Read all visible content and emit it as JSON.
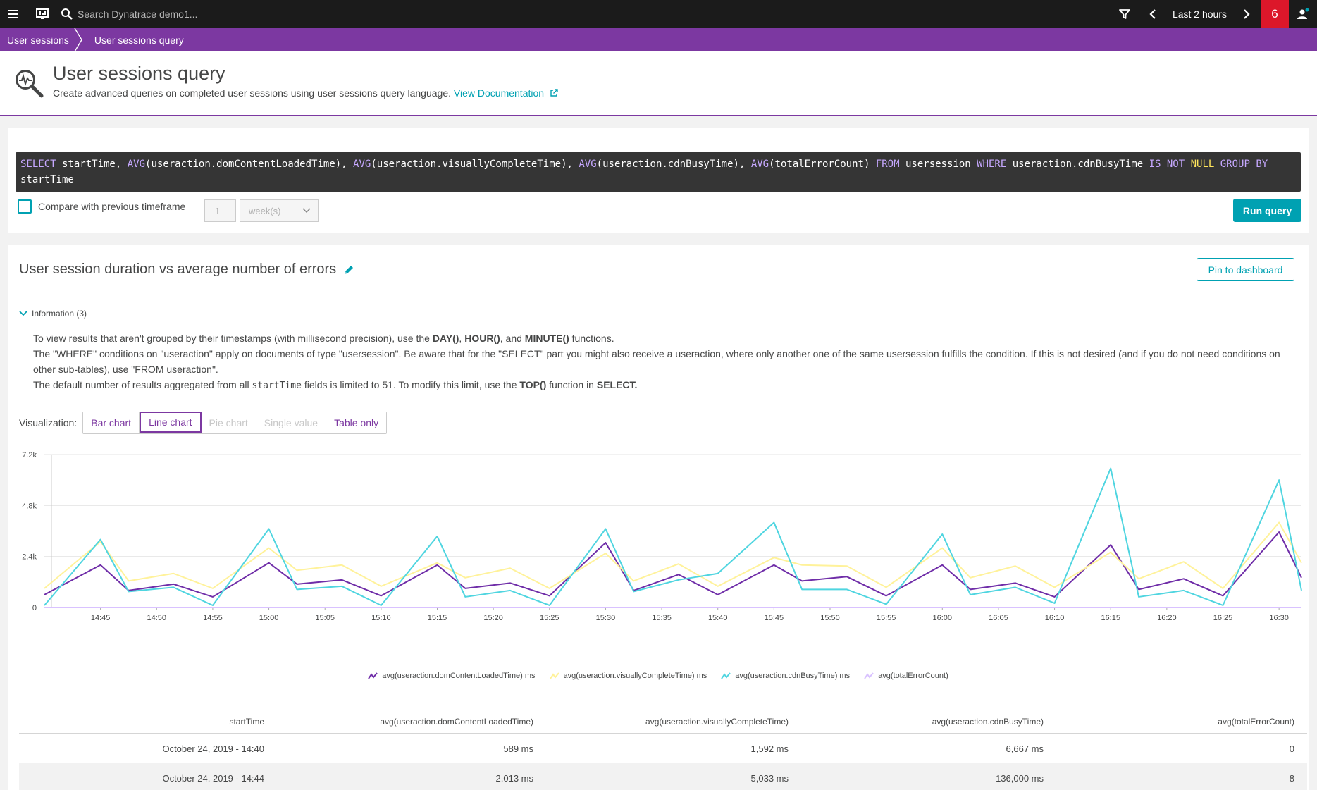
{
  "topbar": {
    "search_placeholder": "Search Dynatrace demo1...",
    "timeframe": "Last 2 hours",
    "problem_count": "6"
  },
  "breadcrumb": [
    "User sessions",
    "User sessions query"
  ],
  "header": {
    "title": "User sessions query",
    "subtitle": "Create advanced queries on completed user sessions using user sessions query language.",
    "doc_link": "View Documentation"
  },
  "query": {
    "tokens": [
      {
        "t": "SELECT",
        "k": "kw"
      },
      {
        "t": " startTime, ",
        "k": ""
      },
      {
        "t": "AVG",
        "k": "kw"
      },
      {
        "t": "(useraction.domContentLoadedTime), ",
        "k": ""
      },
      {
        "t": "AVG",
        "k": "kw"
      },
      {
        "t": "(useraction.visuallyCompleteTime), ",
        "k": ""
      },
      {
        "t": "AVG",
        "k": "kw"
      },
      {
        "t": "(useraction.cdnBusyTime), ",
        "k": ""
      },
      {
        "t": "AVG",
        "k": "kw"
      },
      {
        "t": "(totalErrorCount) ",
        "k": ""
      },
      {
        "t": "FROM",
        "k": "kw"
      },
      {
        "t": " usersession ",
        "k": ""
      },
      {
        "t": "WHERE",
        "k": "kw"
      },
      {
        "t": " useraction.cdnBusyTime ",
        "k": ""
      },
      {
        "t": "IS NOT",
        "k": "kw"
      },
      {
        "t": " ",
        "k": ""
      },
      {
        "t": "NULL",
        "k": "kw3"
      },
      {
        "t": " ",
        "k": ""
      },
      {
        "t": "GROUP BY",
        "k": "kw"
      },
      {
        "t": " startTime",
        "k": ""
      }
    ],
    "compare_label": "Compare with previous timeframe",
    "compare_value": "1",
    "compare_unit": "week(s)",
    "run_label": "Run query"
  },
  "results": {
    "title": "User session duration vs average number of errors",
    "pin_label": "Pin to dashboard",
    "info_label": "Information (3)",
    "info_lines": [
      [
        {
          "t": "To view results that aren't grouped by their timestamps (with millisecond precision), use the "
        },
        {
          "t": "DAY()",
          "b": true
        },
        {
          "t": ", "
        },
        {
          "t": "HOUR()",
          "b": true
        },
        {
          "t": ", and "
        },
        {
          "t": "MINUTE()",
          "b": true
        },
        {
          "t": " functions."
        }
      ],
      [
        {
          "t": "The \"WHERE\" conditions on \"useraction\" apply on documents of type \"usersession\". Be aware that for the \"SELECT\" part you might also receive a useraction, where only another one of the same usersession fulfills the condition. If this is not desired (and if you do not need conditions on other sub-tables), use \"FROM useraction\"."
        }
      ],
      [
        {
          "t": "The default number of results aggregated from all "
        },
        {
          "t": "startTime",
          "m": true
        },
        {
          "t": " fields is limited to 51. To modify this limit, use the "
        },
        {
          "t": "TOP()",
          "b": true
        },
        {
          "t": " function in "
        },
        {
          "t": "SELECT.",
          "b": true
        }
      ]
    ],
    "viz_label": "Visualization:",
    "viz_options": [
      {
        "label": "Bar chart",
        "state": "normal"
      },
      {
        "label": "Line chart",
        "state": "active"
      },
      {
        "label": "Pie chart",
        "state": "disabled"
      },
      {
        "label": "Single value",
        "state": "disabled"
      },
      {
        "label": "Table only",
        "state": "normal"
      }
    ],
    "table": {
      "headers": [
        "startTime",
        "avg(useraction.domContentLoadedTime)",
        "avg(useraction.visuallyCompleteTime)",
        "avg(useraction.cdnBusyTime)",
        "avg(totalErrorCount)"
      ],
      "rows": [
        [
          "October 24, 2019 - 14:40",
          "589 ms",
          "1,592 ms",
          "6,667 ms",
          "0"
        ],
        [
          "October 24, 2019 - 14:44",
          "2,013 ms",
          "5,033 ms",
          "136,000 ms",
          "8"
        ]
      ]
    }
  },
  "chart_data": {
    "type": "line",
    "ylim": [
      0,
      7200
    ],
    "yticks": [
      0,
      2400,
      4800,
      7200
    ],
    "ytick_labels": [
      "0",
      "2.4k",
      "4.8k",
      "7.2k"
    ],
    "xlim": [
      0,
      112
    ],
    "xticks": [
      5,
      10,
      15,
      20,
      25,
      30,
      35,
      40,
      45,
      50,
      55,
      60,
      65,
      70,
      75,
      80,
      85,
      90,
      95,
      100,
      105,
      110
    ],
    "xtick_labels": [
      "14:45",
      "14:50",
      "14:55",
      "15:00",
      "15:05",
      "15:10",
      "15:15",
      "15:20",
      "15:25",
      "15:30",
      "15:35",
      "15:40",
      "15:45",
      "15:50",
      "15:55",
      "16:00",
      "16:05",
      "16:10",
      "16:15",
      "16:20",
      "16:25",
      "16:30"
    ],
    "x": [
      0,
      5,
      7.5,
      11.5,
      15,
      20,
      22.5,
      26.5,
      30,
      35,
      37.5,
      41.5,
      45,
      50,
      52.5,
      56.5,
      60,
      65,
      67.5,
      71.5,
      75,
      80,
      82.5,
      86.5,
      90,
      95,
      97.5,
      101.5,
      105,
      110,
      112
    ],
    "series": [
      {
        "name": "avg(useraction.domContentLoadedTime) ms",
        "color": "#6f2da8",
        "values": [
          600,
          2000,
          800,
          1100,
          500,
          2100,
          1100,
          1300,
          550,
          2000,
          900,
          1150,
          550,
          3050,
          800,
          1550,
          600,
          2000,
          1250,
          1450,
          550,
          2000,
          850,
          1150,
          500,
          2950,
          850,
          1350,
          550,
          3550,
          1400
        ]
      },
      {
        "name": "avg(useraction.visuallyCompleteTime) ms",
        "color": "#fff29a",
        "values": [
          900,
          3100,
          1250,
          1600,
          900,
          2800,
          1750,
          2000,
          1000,
          2100,
          1400,
          1850,
          900,
          2550,
          1250,
          2050,
          1000,
          2350,
          2000,
          1950,
          950,
          2800,
          1400,
          1950,
          950,
          2600,
          1350,
          2150,
          900,
          4000,
          2100
        ]
      },
      {
        "name": "avg(useraction.cdnBusyTime) ms",
        "color": "#4fd5e0",
        "values": [
          100,
          3200,
          750,
          950,
          100,
          3700,
          850,
          1000,
          100,
          3350,
          500,
          800,
          100,
          3700,
          750,
          1300,
          1600,
          4000,
          850,
          850,
          150,
          3450,
          600,
          950,
          200,
          6550,
          500,
          800,
          100,
          6000,
          800
        ]
      },
      {
        "name": "avg(totalErrorCount)",
        "color": "#d9c2ff",
        "values": [
          0,
          0,
          0,
          0,
          0,
          0,
          0,
          0,
          0,
          0,
          0,
          0,
          0,
          0,
          0,
          0,
          0,
          0,
          0,
          0,
          0,
          0,
          0,
          0,
          0,
          0,
          0,
          0,
          0,
          0,
          0
        ]
      }
    ]
  }
}
